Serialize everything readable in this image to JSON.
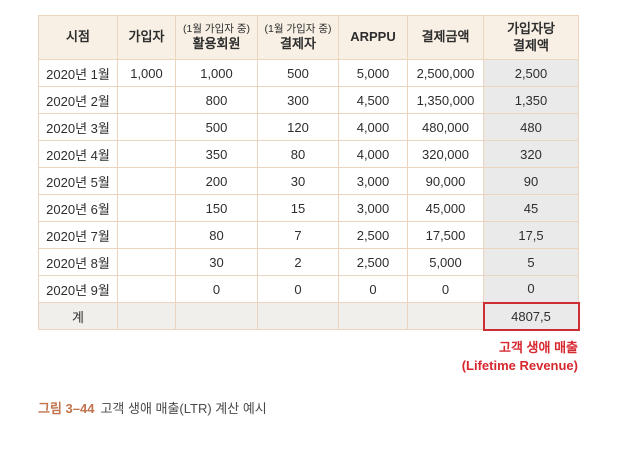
{
  "table": {
    "columns": [
      {
        "note": "",
        "lines": [
          "시점"
        ]
      },
      {
        "note": "",
        "lines": [
          "가입자"
        ]
      },
      {
        "note": "(1월 가입자 중)",
        "lines": [
          "활용회원"
        ]
      },
      {
        "note": "(1월 가입자 중)",
        "lines": [
          "결제자"
        ]
      },
      {
        "note": "",
        "lines": [
          "ARPPU"
        ]
      },
      {
        "note": "",
        "lines": [
          "결제금액"
        ]
      },
      {
        "note": "",
        "lines": [
          "가입자당",
          "결제액"
        ]
      }
    ],
    "rows": [
      [
        "2020년 1월",
        "1,000",
        "1,000",
        "500",
        "5,000",
        "2,500,000",
        "2,500"
      ],
      [
        "2020년 2월",
        "",
        "800",
        "300",
        "4,500",
        "1,350,000",
        "1,350"
      ],
      [
        "2020년 3월",
        "",
        "500",
        "120",
        "4,000",
        "480,000",
        "480"
      ],
      [
        "2020년 4월",
        "",
        "350",
        "80",
        "4,000",
        "320,000",
        "320"
      ],
      [
        "2020년 5월",
        "",
        "200",
        "30",
        "3,000",
        "90,000",
        "90"
      ],
      [
        "2020년 6월",
        "",
        "150",
        "15",
        "3,000",
        "45,000",
        "45"
      ],
      [
        "2020년 7월",
        "",
        "80",
        "7",
        "2,500",
        "17,500",
        "17,5"
      ],
      [
        "2020년 8월",
        "",
        "30",
        "2",
        "2,500",
        "5,000",
        "5"
      ],
      [
        "2020년 9월",
        "",
        "0",
        "0",
        "0",
        "0",
        "0"
      ]
    ],
    "total_row": [
      "계",
      "",
      "",
      "",
      "",
      "",
      "4807,5"
    ]
  },
  "annotation": {
    "line1": "고객 생애 매출",
    "line2": "(Lifetime Revenue)"
  },
  "caption": {
    "label": "그림 3–44",
    "text": "고객 생애 매출(LTR) 계산 예시"
  },
  "colors": {
    "header_bg": "#f8f0e5",
    "border": "#ecd5bf",
    "last_col_bg": "#eaeaea",
    "total_row_bg": "#f1efec",
    "highlight_border": "#cd2e34",
    "annotation_red": "#d7282f",
    "caption_accent": "#c0734c"
  }
}
